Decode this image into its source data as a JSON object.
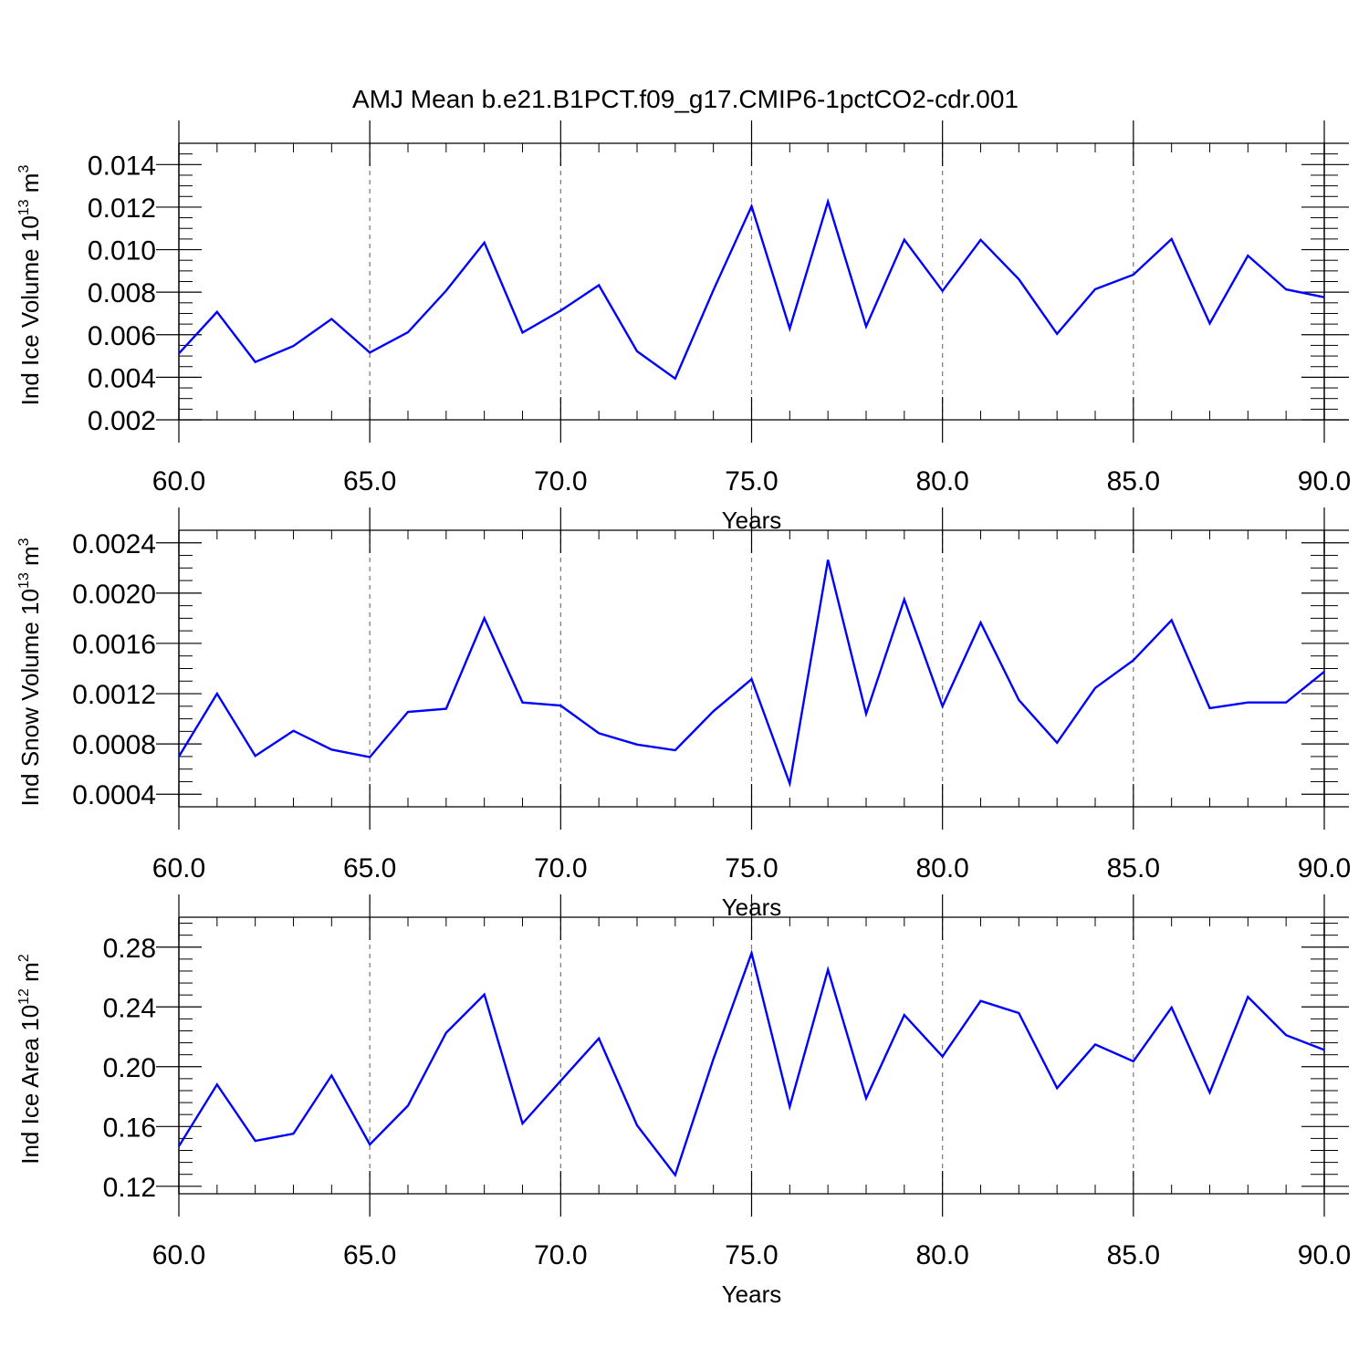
{
  "figure_title": "AMJ Mean b.e21.B1PCT.f09_g17.CMIP6-1pctCO2-cdr.001",
  "chart_data": [
    {
      "type": "line",
      "xlabel": "Years",
      "ylabel_main": "Ind Ice Volume 10",
      "ylabel_exp": "13",
      "ylabel_unit": " m",
      "ylabel_unit_exp": "3",
      "xlim": [
        60,
        90
      ],
      "ylim": [
        0.002,
        0.015
      ],
      "xticks": [
        60,
        65,
        70,
        75,
        80,
        85,
        90
      ],
      "xtick_labels": [
        "60.0",
        "65.0",
        "70.0",
        "75.0",
        "80.0",
        "85.0",
        "90.0"
      ],
      "yticks": [
        0.002,
        0.004,
        0.006,
        0.008,
        0.01,
        0.012,
        0.014
      ],
      "ytick_labels": [
        "0.002",
        "0.004",
        "0.006",
        "0.008",
        "0.010",
        "0.012",
        "0.014"
      ],
      "minor_step": 0.0005,
      "grid": "vertical dashed at major x ticks",
      "series_color": "#0000ff",
      "x": [
        60,
        61,
        62,
        63,
        64,
        65,
        66,
        67,
        68,
        69,
        70,
        71,
        72,
        73,
        74,
        75,
        76,
        77,
        78,
        79,
        80,
        81,
        82,
        83,
        84,
        85,
        86,
        87,
        88,
        89,
        90
      ],
      "values": [
        0.00512,
        0.00707,
        0.00472,
        0.00547,
        0.00674,
        0.00516,
        0.00612,
        0.00807,
        0.01033,
        0.0061,
        0.00713,
        0.00833,
        0.00522,
        0.00394,
        0.0081,
        0.01204,
        0.00629,
        0.01226,
        0.00639,
        0.01047,
        0.00806,
        0.01046,
        0.00861,
        0.00604,
        0.00814,
        0.00882,
        0.0105,
        0.00653,
        0.00972,
        0.00813,
        0.00776
      ]
    },
    {
      "type": "line",
      "xlabel": "Years",
      "ylabel_main": "Ind Snow Volume 10",
      "ylabel_exp": "13",
      "ylabel_unit": " m",
      "ylabel_unit_exp": "3",
      "xlim": [
        60,
        90
      ],
      "ylim": [
        0.0003,
        0.0025
      ],
      "xticks": [
        60,
        65,
        70,
        75,
        80,
        85,
        90
      ],
      "xtick_labels": [
        "60.0",
        "65.0",
        "70.0",
        "75.0",
        "80.0",
        "85.0",
        "90.0"
      ],
      "yticks": [
        0.0004,
        0.0008,
        0.0012,
        0.0016,
        0.002,
        0.0024
      ],
      "ytick_labels": [
        "0.0004",
        "0.0008",
        "0.0012",
        "0.0016",
        "0.0020",
        "0.0024"
      ],
      "minor_step": 0.0001,
      "grid": "vertical dashed at major x ticks",
      "series_color": "#0000ff",
      "x": [
        60,
        61,
        62,
        63,
        64,
        65,
        66,
        67,
        68,
        69,
        70,
        71,
        72,
        73,
        74,
        75,
        76,
        77,
        78,
        79,
        80,
        81,
        82,
        83,
        84,
        85,
        86,
        87,
        88,
        89,
        90
      ],
      "values": [
        0.0007,
        0.0012,
        0.000705,
        0.000905,
        0.000755,
        0.000695,
        0.001055,
        0.00108,
        0.0018,
        0.00113,
        0.001105,
        0.000885,
        0.000795,
        0.00075,
        0.00106,
        0.001315,
        0.000485,
        0.002265,
        0.00104,
        0.00195,
        0.0011,
        0.001765,
        0.00115,
        0.00081,
        0.001245,
        0.001465,
        0.001785,
        0.001085,
        0.00113,
        0.00113,
        0.001375
      ]
    },
    {
      "type": "line",
      "xlabel": "Years",
      "ylabel_main": "Ind Ice Area 10",
      "ylabel_exp": "12",
      "ylabel_unit": " m",
      "ylabel_unit_exp": "2",
      "xlim": [
        60,
        90
      ],
      "ylim": [
        0.115,
        0.3
      ],
      "xticks": [
        60,
        65,
        70,
        75,
        80,
        85,
        90
      ],
      "xtick_labels": [
        "60.0",
        "65.0",
        "70.0",
        "75.0",
        "80.0",
        "85.0",
        "90.0"
      ],
      "yticks": [
        0.12,
        0.16,
        0.2,
        0.24,
        0.28
      ],
      "ytick_labels": [
        "0.12",
        "0.16",
        "0.20",
        "0.24",
        "0.28"
      ],
      "minor_step": 0.008,
      "grid": "vertical dashed at major x ticks",
      "series_color": "#0000ff",
      "x": [
        60,
        61,
        62,
        63,
        64,
        65,
        66,
        67,
        68,
        69,
        70,
        71,
        72,
        73,
        74,
        75,
        76,
        77,
        78,
        79,
        80,
        81,
        82,
        83,
        84,
        85,
        86,
        87,
        88,
        89,
        90
      ],
      "values": [
        0.1468,
        0.1881,
        0.1504,
        0.1552,
        0.1941,
        0.148,
        0.1739,
        0.2227,
        0.2483,
        0.162,
        0.1905,
        0.2189,
        0.1608,
        0.1275,
        0.2052,
        0.276,
        0.1733,
        0.2649,
        0.1789,
        0.2346,
        0.2068,
        0.244,
        0.2359,
        0.1857,
        0.2149,
        0.2036,
        0.2396,
        0.1827,
        0.2467,
        0.2211,
        0.2112
      ]
    }
  ]
}
